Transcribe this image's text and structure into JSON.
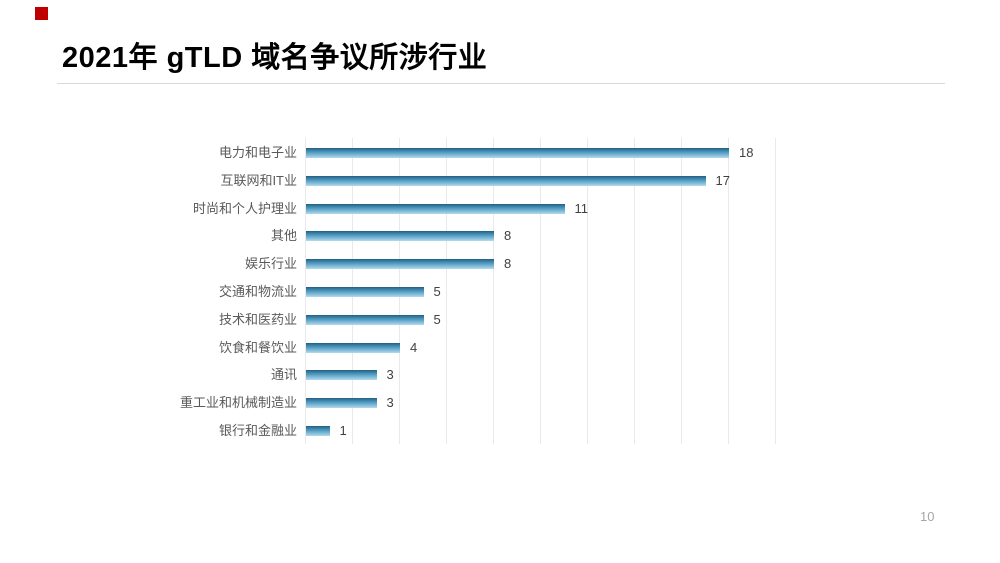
{
  "slide": {
    "title": "2021年 gTLD 域名争议所涉行业",
    "page_number": "10",
    "background": "#ffffff",
    "accent_color": "#c00000",
    "title_color": "#000000",
    "divider_color": "#d9d9d9",
    "page_number_color": "#a6a6a6"
  },
  "chart_data": {
    "type": "bar",
    "orientation": "horizontal",
    "title": "",
    "xlabel": "",
    "ylabel": "",
    "categories": [
      "电力和电子业",
      "互联网和IT业",
      "时尚和个人护理业",
      "其他",
      "娱乐行业",
      "交通和物流业",
      "技术和医药业",
      "饮食和餐饮业",
      "通讯",
      "重工业和机械制造业",
      "银行和金融业"
    ],
    "values": [
      18,
      17,
      11,
      8,
      8,
      5,
      5,
      4,
      3,
      3,
      1
    ],
    "data_labels": true,
    "xlim": [
      0,
      20
    ],
    "gridline_step": 2,
    "grid": true,
    "legend": false,
    "grid_color": "#e9e9e9",
    "axis_line_color": "#e9e9e9",
    "category_label_color": "#595959",
    "value_label_color": "#404040",
    "bar_gradient": [
      "#235f80",
      "#3e88ae",
      "#6fb0d2",
      "#b5daea"
    ]
  }
}
